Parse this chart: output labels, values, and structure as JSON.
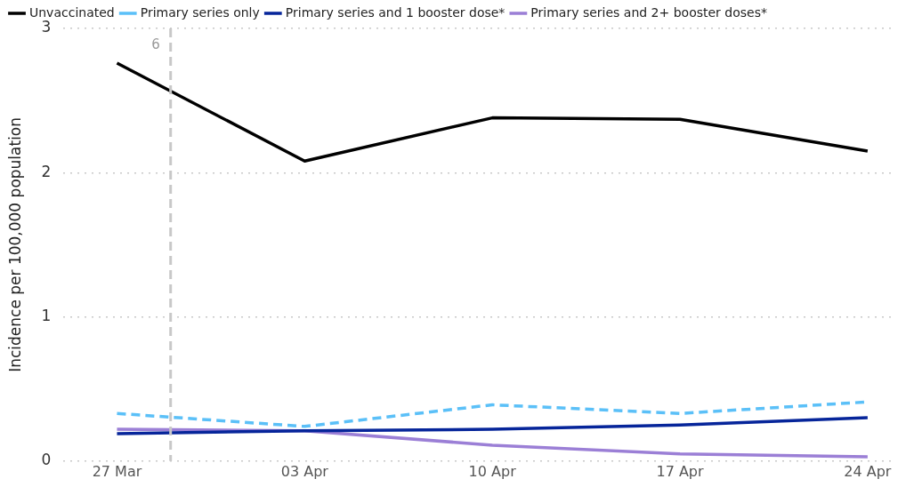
{
  "chart_data": {
    "type": "line",
    "ylabel": "Incidence per 100,000 population",
    "x": [
      "--03-27",
      "--04-03",
      "--04-10",
      "--04-17",
      "--04-24"
    ],
    "xlim": [
      "--03-25",
      "--04-25"
    ],
    "xticks": [
      {
        "value": "--03-27",
        "label": "27 Mar"
      },
      {
        "value": "--04-03",
        "label": "03 Apr"
      },
      {
        "value": "--04-10",
        "label": "10 Apr"
      },
      {
        "value": "--04-17",
        "label": "17 Apr"
      },
      {
        "value": "--04-24",
        "label": "24 Apr"
      }
    ],
    "ylim": [
      0,
      3
    ],
    "yticks": [
      0,
      1,
      2,
      3
    ],
    "grid": "y",
    "legend": "top left",
    "marker": "none",
    "series": [
      {
        "name": "Unvaccinated",
        "color": "#000000",
        "values": [
          2.76,
          2.08,
          2.38,
          2.37,
          2.15
        ]
      },
      {
        "name": "Primary series only",
        "color": "#5bc0f8",
        "line_style": "dashed",
        "values": [
          0.33,
          0.24,
          0.39,
          0.33,
          0.41
        ]
      },
      {
        "name": "Primary series and 1 booster dose*",
        "color": "#06259a",
        "values": [
          0.19,
          0.21,
          0.22,
          0.25,
          0.3
        ]
      },
      {
        "name": "Primary series and 2+ booster doses*",
        "color": "#9b7fd6",
        "values": [
          0.22,
          0.21,
          0.11,
          0.05,
          0.03
        ]
      }
    ],
    "ref_lines": [
      {
        "axis": "x",
        "value": "--03-29",
        "label": "6",
        "color": "#c8c8c8",
        "line_style": "dashed"
      }
    ]
  }
}
